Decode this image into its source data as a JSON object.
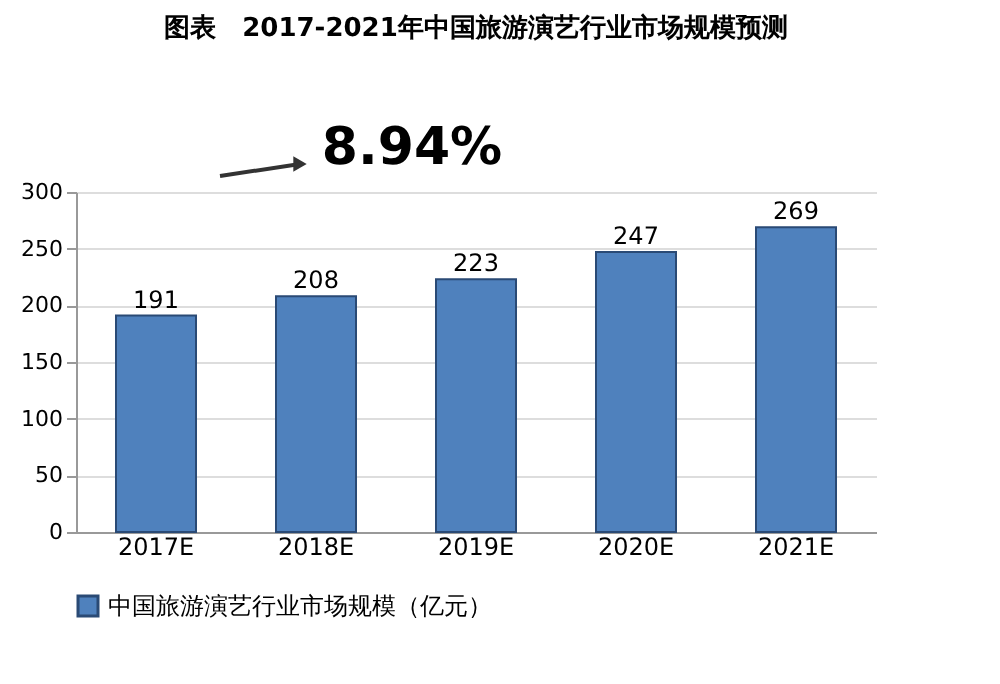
{
  "chart_data": {
    "type": "bar",
    "title": "图表　2017-2021年中国旅游演艺行业市场规模预测",
    "categories": [
      "2017E",
      "2018E",
      "2019E",
      "2020E",
      "2021E"
    ],
    "series": [
      {
        "name": "中国旅游演艺行业市场规模（亿元）",
        "color": "#4f81bd",
        "values": [
          191,
          208,
          223,
          247,
          269
        ]
      }
    ],
    "ylim": [
      0,
      300
    ],
    "yticks": [
      0,
      50,
      100,
      150,
      200,
      250,
      300
    ],
    "grid": "y",
    "legend": "bottom",
    "data_labels": true,
    "annotations": [
      "8.94%"
    ]
  }
}
